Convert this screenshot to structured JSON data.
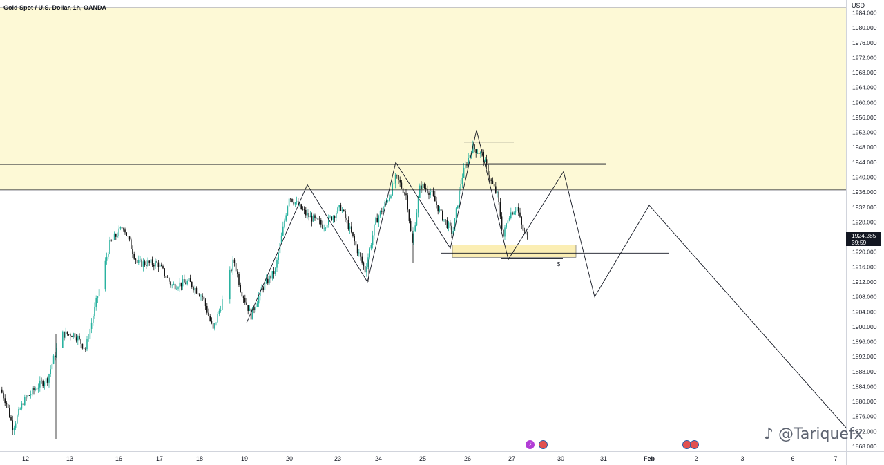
{
  "header": {
    "symbol_title": "Gold Spot / U.S. Dollar, 1h, OANDA",
    "currency": "USD"
  },
  "price_tag": {
    "price": "1924.285",
    "countdown": "39:59"
  },
  "watermark": {
    "text": "@Tariquefx"
  },
  "events": [
    {
      "icon": "flash-event-icon",
      "glyph": "⚡"
    },
    {
      "icon": "us-flag-event-icon",
      "glyph": ""
    },
    {
      "icon": "us-flag-event-icon",
      "glyph": ""
    },
    {
      "icon": "us-flag-event-icon",
      "glyph": ""
    }
  ],
  "colors": {
    "zone_fill": "#fdf9d6",
    "up_candle": "#2ab2a0",
    "down_candle": "#141414",
    "line": "#131722",
    "small_zone": "#fbeeb4"
  },
  "chart_data": {
    "type": "candlestick",
    "title": "Gold Spot / U.S. Dollar, 1h, OANDA",
    "ylabel": "USD",
    "ylim": [
      1866,
      1986
    ],
    "y_ticks": [
      "1984.000",
      "1980.000",
      "1976.000",
      "1972.000",
      "1968.000",
      "1964.000",
      "1960.000",
      "1956.000",
      "1952.000",
      "1948.000",
      "1944.000",
      "1940.000",
      "1936.000",
      "1932.000",
      "1928.000",
      "1924.000",
      "1920.000",
      "1916.000",
      "1912.000",
      "1908.000",
      "1904.000",
      "1900.000",
      "1896.000",
      "1892.000",
      "1888.000",
      "1884.000",
      "1880.000",
      "1876.000",
      "1872.000",
      "1868.000"
    ],
    "x_ticks": [
      "12",
      "13",
      "16",
      "17",
      "18",
      "19",
      "20",
      "23",
      "24",
      "25",
      "26",
      "27",
      "30",
      "31",
      "Feb",
      "2",
      "3",
      "6",
      "7"
    ],
    "anchors": [
      {
        "t": 0,
        "p": 1884
      },
      {
        "t": 10,
        "p": 1880
      },
      {
        "t": 20,
        "p": 1873
      },
      {
        "t": 35,
        "p": 1880
      },
      {
        "t": 55,
        "p": 1884
      },
      {
        "t": 70,
        "p": 1886
      },
      {
        "t": 90,
        "p": 1898
      },
      {
        "t": 110,
        "p": 1898
      },
      {
        "t": 125,
        "p": 1894
      },
      {
        "t": 140,
        "p": 1906
      },
      {
        "t": 160,
        "p": 1922
      },
      {
        "t": 180,
        "p": 1927
      },
      {
        "t": 200,
        "p": 1917
      },
      {
        "t": 230,
        "p": 1917
      },
      {
        "t": 250,
        "p": 1911
      },
      {
        "t": 275,
        "p": 1912
      },
      {
        "t": 295,
        "p": 1908
      },
      {
        "t": 310,
        "p": 1899
      },
      {
        "t": 325,
        "p": 1908
      },
      {
        "t": 340,
        "p": 1918
      },
      {
        "t": 350,
        "p": 1910
      },
      {
        "t": 365,
        "p": 1903
      },
      {
        "t": 380,
        "p": 1910
      },
      {
        "t": 400,
        "p": 1915
      },
      {
        "t": 420,
        "p": 1935
      },
      {
        "t": 445,
        "p": 1930
      },
      {
        "t": 470,
        "p": 1927
      },
      {
        "t": 495,
        "p": 1932
      },
      {
        "t": 510,
        "p": 1925
      },
      {
        "t": 530,
        "p": 1915
      },
      {
        "t": 545,
        "p": 1928
      },
      {
        "t": 565,
        "p": 1935
      },
      {
        "t": 575,
        "p": 1940
      },
      {
        "t": 590,
        "p": 1935
      },
      {
        "t": 598,
        "p": 1922
      },
      {
        "t": 610,
        "p": 1938
      },
      {
        "t": 625,
        "p": 1936
      },
      {
        "t": 640,
        "p": 1930
      },
      {
        "t": 657,
        "p": 1925
      },
      {
        "t": 670,
        "p": 1940
      },
      {
        "t": 685,
        "p": 1948
      },
      {
        "t": 700,
        "p": 1946
      },
      {
        "t": 712,
        "p": 1939
      },
      {
        "t": 722,
        "p": 1935
      },
      {
        "t": 730,
        "p": 1924
      },
      {
        "t": 738,
        "p": 1930
      },
      {
        "t": 750,
        "p": 1932
      },
      {
        "t": 758,
        "p": 1926
      },
      {
        "t": 765,
        "p": 1924.285
      }
    ],
    "lines": [
      {
        "name": "resistance-level",
        "from": [
          0,
          1943.4
        ],
        "to": [
          878,
          1943.4
        ]
      },
      {
        "name": "zone-bottom",
        "from": [
          0,
          1936.6
        ],
        "to": [
          1225,
          1936.6
        ]
      },
      {
        "name": "high-mark",
        "from": [
          672,
          1949.4
        ],
        "to": [
          744,
          1949.4
        ]
      },
      {
        "name": "neckline-mark",
        "from": [
          706,
          1943.6
        ],
        "to": [
          878,
          1943.6
        ]
      },
      {
        "name": "support-level",
        "from": [
          638,
          1919.7
        ],
        "to": [
          968,
          1919.7
        ]
      },
      {
        "name": "liquidity-mark",
        "from": [
          725,
          1918.2
        ],
        "to": [
          815,
          1918.2
        ]
      }
    ],
    "projection_path": [
      [
        357,
        1901
      ],
      [
        445,
        1938
      ],
      [
        532,
        1912
      ],
      [
        573,
        1944
      ],
      [
        652,
        1921
      ],
      [
        690,
        1952.6
      ],
      [
        736,
        1918
      ],
      [
        816,
        1941.5
      ],
      [
        861,
        1908
      ],
      [
        940,
        1932.5
      ],
      [
        1225,
        1873
      ]
    ],
    "zones": [
      {
        "name": "supply-zone",
        "price_top": 1986,
        "price_bottom": 1936.6,
        "x_from": 0,
        "x_to": 1225
      },
      {
        "name": "demand-box",
        "price_top": 1921.9,
        "price_bottom": 1918.6,
        "x_from": 655,
        "x_to": 834
      }
    ],
    "annotations": [
      {
        "text": "$",
        "t": 809,
        "p": 1917
      }
    ]
  }
}
